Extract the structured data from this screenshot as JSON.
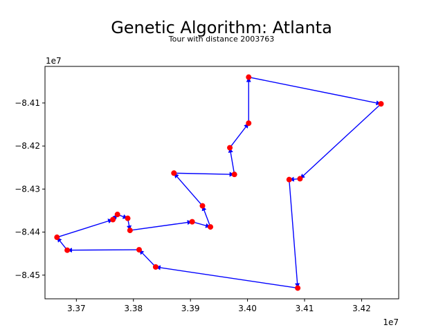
{
  "chart_data": {
    "type": "scatter",
    "title": "Genetic Algorithm: Atlanta",
    "subtitle": "Tour with distance 2003763",
    "x_offset_label": "1e7",
    "y_offset_label": "1e7",
    "xlim": [
      3.3645,
      3.4265
    ],
    "ylim": [
      -8.4555,
      -8.4015
    ],
    "x_ticks": [
      3.37,
      3.38,
      3.39,
      3.4,
      3.41,
      3.42
    ],
    "x_tick_labels": [
      "3.37",
      "3.38",
      "3.39",
      "3.40",
      "3.41",
      "3.42"
    ],
    "y_ticks": [
      -8.41,
      -8.42,
      -8.43,
      -8.44,
      -8.45
    ],
    "y_tick_labels": [
      "−8.41",
      "−8.42",
      "−8.43",
      "−8.44",
      "−8.45"
    ],
    "grid": false,
    "point_color": "#ff0000",
    "edge_color": "#0000ff",
    "tour": [
      [
        3.4002,
        -8.404
      ],
      [
        3.4234,
        -8.4102
      ],
      [
        3.4092,
        -8.4276
      ],
      [
        3.4073,
        -8.4278
      ],
      [
        3.4088,
        -8.453
      ],
      [
        3.3839,
        -8.4481
      ],
      [
        3.381,
        -8.4441
      ],
      [
        3.3684,
        -8.4442
      ],
      [
        3.3666,
        -8.4412
      ],
      [
        3.3764,
        -8.4371
      ],
      [
        3.3772,
        -8.4359
      ],
      [
        3.379,
        -8.4368
      ],
      [
        3.3794,
        -8.4396
      ],
      [
        3.3903,
        -8.4376
      ],
      [
        3.3935,
        -8.4388
      ],
      [
        3.3921,
        -8.4339
      ],
      [
        3.3871,
        -8.4263
      ],
      [
        3.3977,
        -8.4266
      ],
      [
        3.3969,
        -8.4204
      ],
      [
        3.4002,
        -8.4147
      ]
    ]
  }
}
